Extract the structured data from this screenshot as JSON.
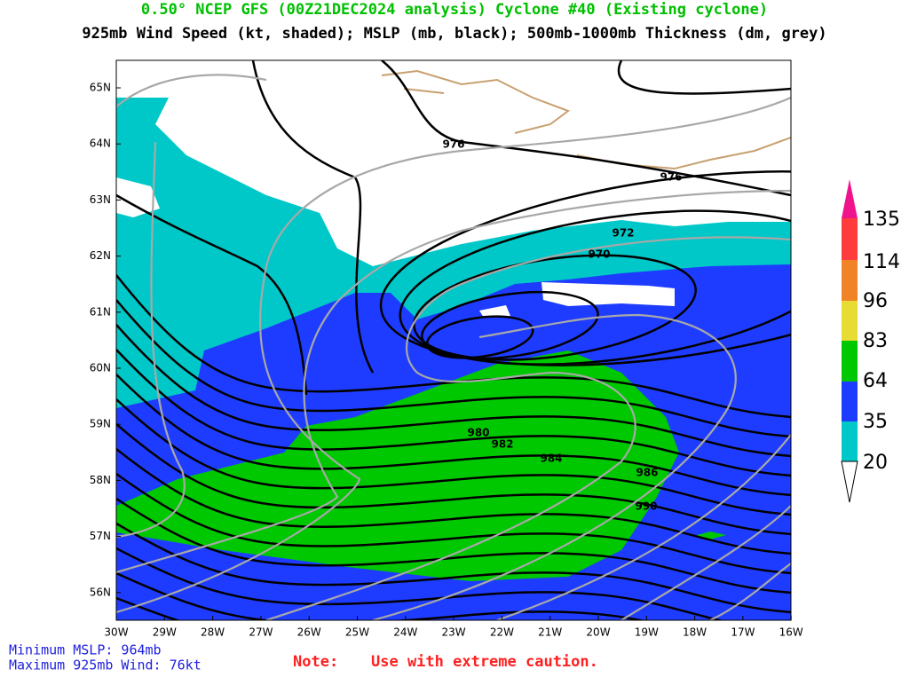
{
  "header": {
    "title": "0.50° NCEP GFS (00Z21DEC2024 analysis) Cyclone #40 (Existing cyclone)",
    "subtitle": "925mb Wind Speed (kt, shaded); MSLP (mb, black); 500mb-1000mb Thickness (dm, grey)"
  },
  "map": {
    "lon_labels": [
      "30W",
      "29W",
      "28W",
      "27W",
      "26W",
      "25W",
      "24W",
      "23W",
      "22W",
      "21W",
      "20W",
      "19W",
      "18W",
      "17W",
      "16W"
    ],
    "lat_labels": [
      "65N",
      "64N",
      "63N",
      "62N",
      "61N",
      "60N",
      "59N",
      "58N",
      "57N",
      "56N"
    ],
    "contour_labels": [
      "976",
      "976",
      "972",
      "970",
      "980",
      "982",
      "984",
      "986",
      "990"
    ]
  },
  "colorbar": {
    "labels": [
      "135",
      "114",
      "96",
      "83",
      "64",
      "35",
      "20"
    ]
  },
  "footer": {
    "min_mslp": "Minimum MSLP: 964mb",
    "max_wind": "Maximum 925mb Wind: 76kt",
    "note_label": "Note:",
    "note_text": "Use with extreme caution."
  }
}
